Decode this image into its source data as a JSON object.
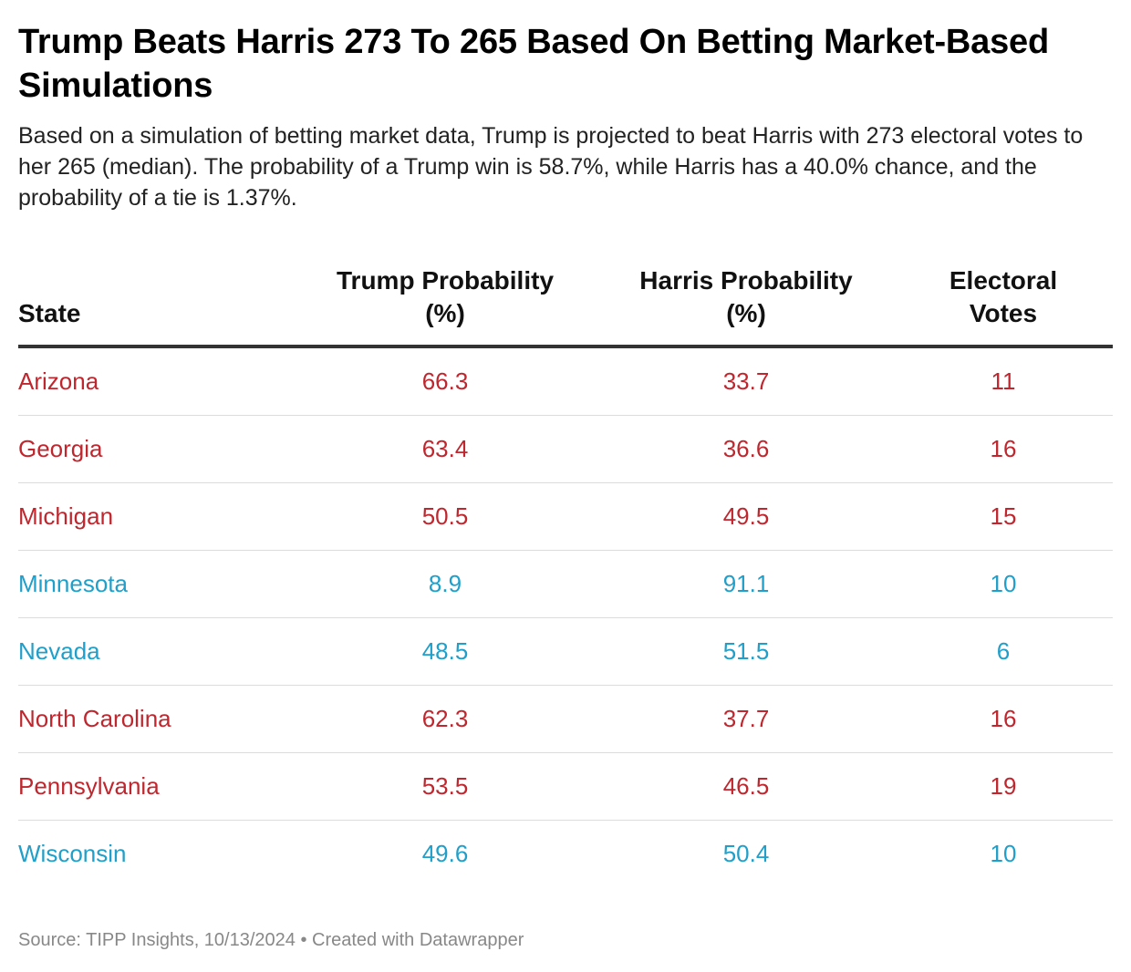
{
  "title": "Trump Beats Harris 273 To 265 Based On Betting Market-Based Simulations",
  "description": "Based on a simulation of betting market data, Trump is projected to beat Harris with 273 electoral votes to her 265 (median). The probability of a Trump win is 58.7%, while Harris has a 40.0% chance, and the probability of a tie is 1.37%.",
  "columns": [
    "State",
    "Trump Probability (%)",
    "Harris Probability (%)",
    "Electoral Votes"
  ],
  "colors": {
    "trump_lean": "#c0262d",
    "harris_lean": "#1f9fc9"
  },
  "chart_data": {
    "type": "table",
    "title": "Trump Beats Harris 273 To 265 Based On Betting Market-Based Simulations",
    "columns": [
      "State",
      "Trump Probability (%)",
      "Harris Probability (%)",
      "Electoral Votes"
    ],
    "rows": [
      {
        "state": "Arizona",
        "trump": "66.3",
        "harris": "33.7",
        "ev": "11",
        "lean": "trump"
      },
      {
        "state": "Georgia",
        "trump": "63.4",
        "harris": "36.6",
        "ev": "16",
        "lean": "trump"
      },
      {
        "state": "Michigan",
        "trump": "50.5",
        "harris": "49.5",
        "ev": "15",
        "lean": "trump"
      },
      {
        "state": "Minnesota",
        "trump": "8.9",
        "harris": "91.1",
        "ev": "10",
        "lean": "harris"
      },
      {
        "state": "Nevada",
        "trump": "48.5",
        "harris": "51.5",
        "ev": "6",
        "lean": "harris"
      },
      {
        "state": "North Carolina",
        "trump": "62.3",
        "harris": "37.7",
        "ev": "16",
        "lean": "trump"
      },
      {
        "state": "Pennsylvania",
        "trump": "53.5",
        "harris": "46.5",
        "ev": "19",
        "lean": "trump"
      },
      {
        "state": "Wisconsin",
        "trump": "49.6",
        "harris": "50.4",
        "ev": "10",
        "lean": "harris"
      }
    ]
  },
  "footer": "Source: TIPP Insights, 10/13/2024 • Created with Datawrapper"
}
